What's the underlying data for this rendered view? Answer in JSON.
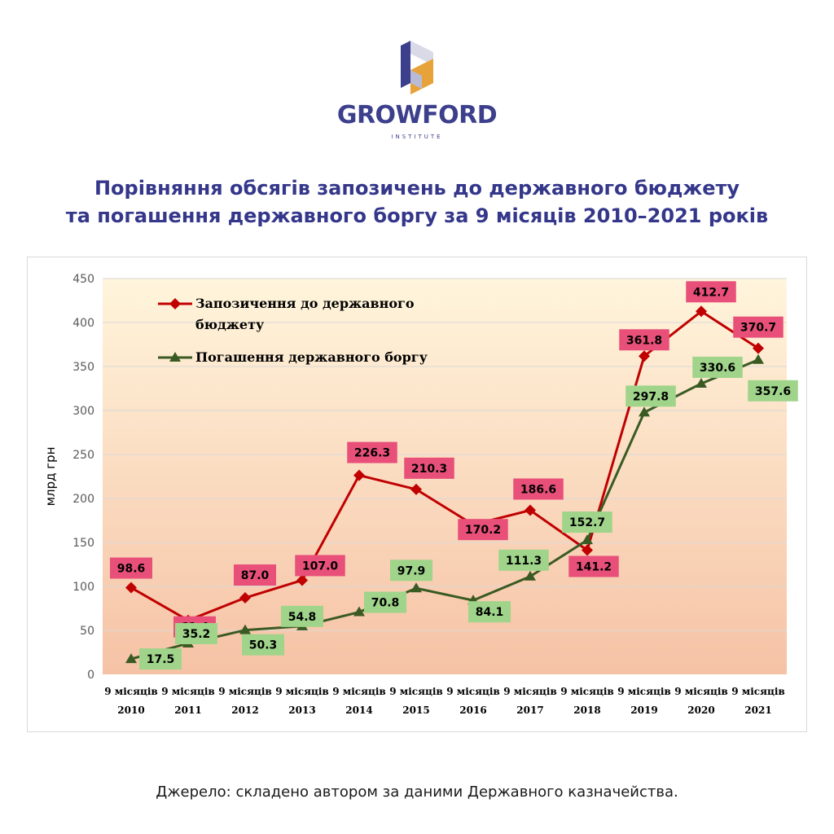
{
  "logo": {
    "name": "GROWFORD",
    "subtitle": "INSTITUTE",
    "colors": {
      "primary": "#3c3f8c",
      "accent": "#e7a33a",
      "light": "#d9dae8"
    }
  },
  "title": {
    "line1": "Порівняння обсягів запозичень до державного бюджету",
    "line2": "та погашення державного боргу за 9 місяців 2010–2021 років"
  },
  "source": "Джерело: складено автором за даними Державного казначейства.",
  "chart_data": {
    "type": "line",
    "ylabel": "млрд грн",
    "ylim": [
      0,
      450
    ],
    "yticks": [
      0,
      50,
      100,
      150,
      200,
      250,
      300,
      350,
      400,
      450
    ],
    "grid": true,
    "legend_position": "top-left",
    "categories": [
      [
        "9 місяців",
        "2010"
      ],
      [
        "9 місяців",
        "2011"
      ],
      [
        "9 місяців",
        "2012"
      ],
      [
        "9 місяців",
        "2013"
      ],
      [
        "9 місяців",
        "2014"
      ],
      [
        "9 місяців",
        "2015"
      ],
      [
        "9 місяців",
        "2016"
      ],
      [
        "9 місяців",
        "2017"
      ],
      [
        "9 місяців",
        "2018"
      ],
      [
        "9 місяців",
        "2019"
      ],
      [
        "9 місяців",
        "2020"
      ],
      [
        "9 місяців",
        "2021"
      ]
    ],
    "series": [
      {
        "name": "Запозичення до державного бюджету",
        "legend_lines": [
          "Запозичення до державного",
          "бюджету"
        ],
        "marker": "diamond",
        "color": "#c00000",
        "label_bg": "#e8507a",
        "label_text": "#000000",
        "values": [
          98.6,
          61.4,
          87.0,
          107.0,
          226.3,
          210.3,
          170.2,
          186.6,
          141.2,
          361.8,
          412.7,
          370.7
        ],
        "labels": [
          "98.6",
          "61.4",
          "87.0",
          "107.0",
          "226.3",
          "210.3",
          "170.2",
          "186.6",
          "141.2",
          "361.8",
          "412.7",
          "370.7"
        ]
      },
      {
        "name": "Погашення державного боргу",
        "legend_lines": [
          "Погашення державного боргу"
        ],
        "marker": "triangle",
        "color": "#3a5a23",
        "label_bg": "#9fd48a",
        "label_text": "#000000",
        "values": [
          17.5,
          35.2,
          50.3,
          54.8,
          70.8,
          97.9,
          84.1,
          111.3,
          152.7,
          297.8,
          330.6,
          357.6
        ],
        "labels": [
          "17.5",
          "35.2",
          "50.3",
          "54.8",
          "70.8",
          "97.9",
          "84.1",
          "111.3",
          "152.7",
          "297.8",
          "330.6",
          "357.6"
        ]
      }
    ]
  }
}
